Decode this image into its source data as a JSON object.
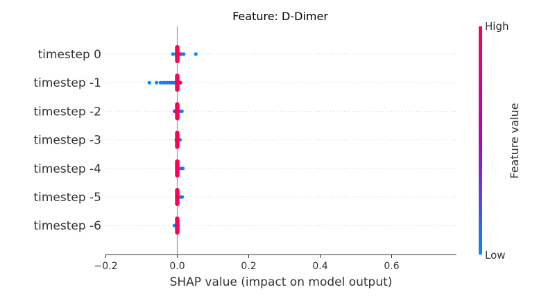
{
  "chart_data": {
    "type": "scatter",
    "title": "Feature: D-Dimer",
    "xlabel": "SHAP value (impact on model output)",
    "xlim": [
      -0.205,
      0.79
    ],
    "xticks": [
      -0.2,
      0.0,
      0.2,
      0.4,
      0.6
    ],
    "xtick_labels": [
      "−0.2",
      "0.0",
      "0.2",
      "0.4",
      "0.6"
    ],
    "categories": [
      "timestep 0",
      "timestep -1",
      "timestep -2",
      "timestep -3",
      "timestep -4",
      "timestep -5",
      "timestep -6"
    ],
    "colorbar": {
      "label": "Feature value",
      "high_label": "High",
      "low_label": "Low",
      "high_color": "#ff0052",
      "mid_color": "#b500c4",
      "low_color": "#008bfb"
    },
    "series": [
      {
        "category": "timestep 0",
        "points": [
          {
            "x": -0.012,
            "v": 0.0
          },
          {
            "x": -0.004,
            "v": 0.05
          },
          {
            "x": 0.002,
            "v": 1.0
          },
          {
            "x": 0.006,
            "v": 1.0
          },
          {
            "x": 0.01,
            "v": 0.1
          },
          {
            "x": 0.015,
            "v": 0.05
          },
          {
            "x": 0.018,
            "v": 0.0
          },
          {
            "x": 0.052,
            "v": 0.0
          }
        ]
      },
      {
        "category": "timestep -1",
        "points": [
          {
            "x": -0.078,
            "v": 0.0
          },
          {
            "x": -0.058,
            "v": 0.0
          },
          {
            "x": -0.047,
            "v": 0.05
          },
          {
            "x": -0.04,
            "v": 0.0
          },
          {
            "x": -0.034,
            "v": 0.05
          },
          {
            "x": -0.028,
            "v": 0.05
          },
          {
            "x": -0.022,
            "v": 0.0
          },
          {
            "x": -0.017,
            "v": 0.1
          },
          {
            "x": -0.012,
            "v": 0.0
          },
          {
            "x": -0.007,
            "v": 0.1
          },
          {
            "x": -0.003,
            "v": 0.3
          },
          {
            "x": 0.002,
            "v": 1.0
          },
          {
            "x": 0.006,
            "v": 1.0
          },
          {
            "x": 0.009,
            "v": 0.9
          }
        ]
      },
      {
        "category": "timestep -2",
        "points": [
          {
            "x": -0.007,
            "v": 0.5
          },
          {
            "x": -0.002,
            "v": 0.6
          },
          {
            "x": 0.002,
            "v": 1.0
          },
          {
            "x": 0.007,
            "v": 0.1
          },
          {
            "x": 0.013,
            "v": 0.0
          }
        ]
      },
      {
        "category": "timestep -3",
        "points": [
          {
            "x": -0.003,
            "v": 0.0
          },
          {
            "x": 0.002,
            "v": 1.0
          },
          {
            "x": 0.008,
            "v": 0.0
          }
        ]
      },
      {
        "category": "timestep -4",
        "points": [
          {
            "x": 0.002,
            "v": 1.0
          },
          {
            "x": 0.01,
            "v": 0.1
          },
          {
            "x": 0.016,
            "v": 0.0
          }
        ]
      },
      {
        "category": "timestep -5",
        "points": [
          {
            "x": 0.002,
            "v": 1.0
          },
          {
            "x": 0.009,
            "v": 0.1
          },
          {
            "x": 0.014,
            "v": 0.0
          }
        ]
      },
      {
        "category": "timestep -6",
        "points": [
          {
            "x": -0.008,
            "v": 0.0
          },
          {
            "x": -0.002,
            "v": 0.2
          },
          {
            "x": 0.002,
            "v": 1.0
          }
        ]
      }
    ],
    "zero_line": 0.0,
    "grid": "dotted-row-guides"
  }
}
